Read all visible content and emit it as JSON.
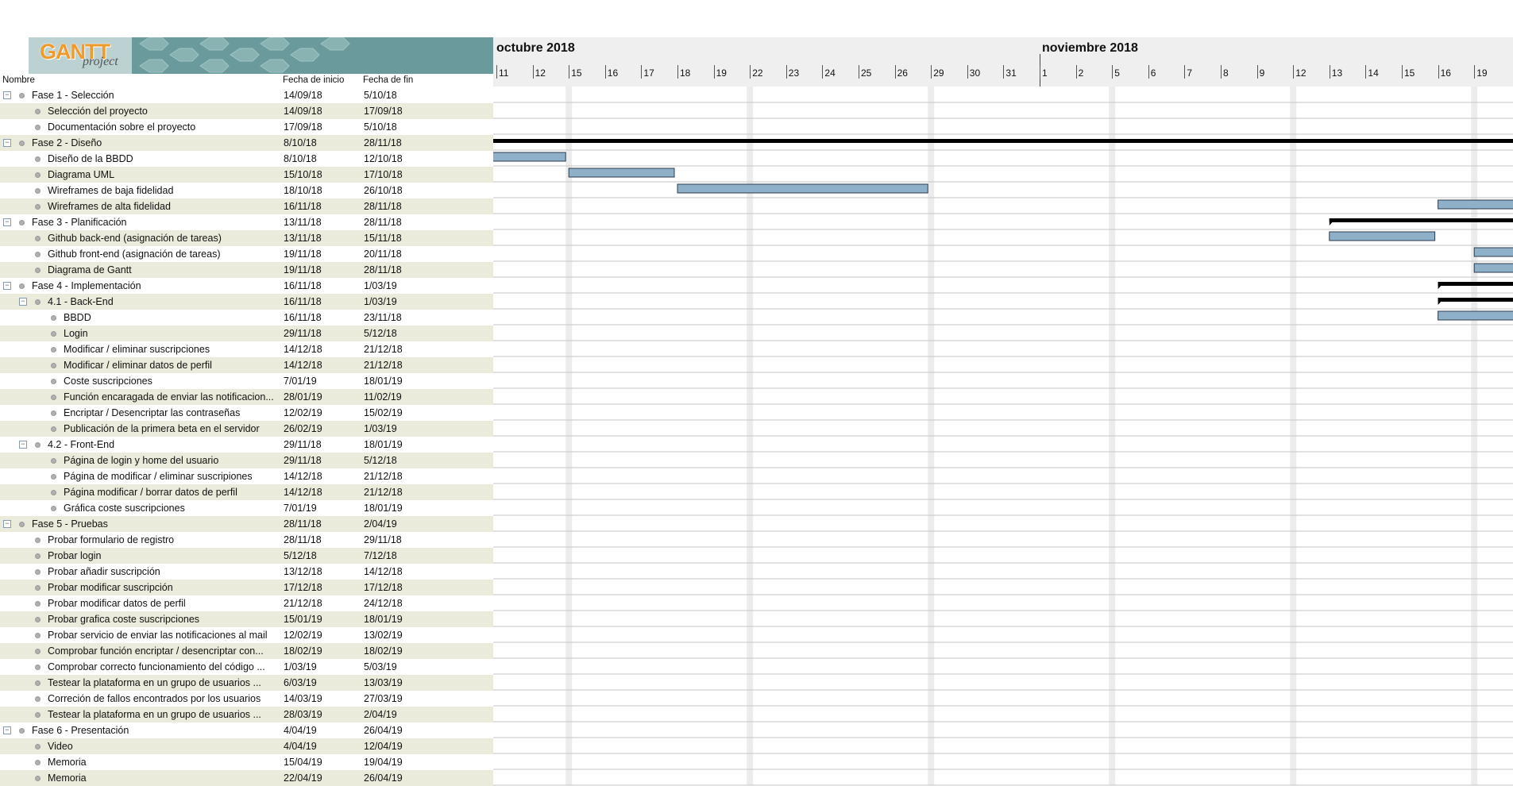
{
  "logo": {
    "gantt": "GANTT",
    "project": "project"
  },
  "table": {
    "header": {
      "name": "Nombre",
      "start": "Fecha de inicio",
      "end": "Fecha de fin"
    },
    "rows": [
      {
        "name": "Fase 1 - Selección",
        "start": "14/09/18",
        "end": "5/10/18",
        "level": 0,
        "expander": true
      },
      {
        "name": "Selección del proyecto",
        "start": "14/09/18",
        "end": "17/09/18",
        "level": 1
      },
      {
        "name": "Documentación sobre el proyecto",
        "start": "17/09/18",
        "end": "5/10/18",
        "level": 1
      },
      {
        "name": "Fase 2 - Diseño",
        "start": "8/10/18",
        "end": "28/11/18",
        "level": 0,
        "expander": true
      },
      {
        "name": "Diseño de la BBDD",
        "start": "8/10/18",
        "end": "12/10/18",
        "level": 1
      },
      {
        "name": "Diagrama UML",
        "start": "15/10/18",
        "end": "17/10/18",
        "level": 1
      },
      {
        "name": "Wireframes de baja fidelidad",
        "start": "18/10/18",
        "end": "26/10/18",
        "level": 1
      },
      {
        "name": "Wireframes de alta fidelidad",
        "start": "16/11/18",
        "end": "28/11/18",
        "level": 1
      },
      {
        "name": "Fase 3 - Planificación",
        "start": "13/11/18",
        "end": "28/11/18",
        "level": 0,
        "expander": true
      },
      {
        "name": "Github back-end (asignación de tareas)",
        "start": "13/11/18",
        "end": "15/11/18",
        "level": 1
      },
      {
        "name": "Github front-end (asignación de tareas)",
        "start": "19/11/18",
        "end": "20/11/18",
        "level": 1
      },
      {
        "name": "Diagrama de Gantt",
        "start": "19/11/18",
        "end": "28/11/18",
        "level": 1
      },
      {
        "name": "Fase 4 - Implementación",
        "start": "16/11/18",
        "end": "1/03/19",
        "level": 0,
        "expander": true
      },
      {
        "name": "4.1 - Back-End",
        "start": "16/11/18",
        "end": "1/03/19",
        "level": 1,
        "expander": true
      },
      {
        "name": "BBDD",
        "start": "16/11/18",
        "end": "23/11/18",
        "level": 2
      },
      {
        "name": "Login",
        "start": "29/11/18",
        "end": "5/12/18",
        "level": 2
      },
      {
        "name": "Modificar / eliminar suscripciones",
        "start": "14/12/18",
        "end": "21/12/18",
        "level": 2
      },
      {
        "name": "Modificar / eliminar datos de perfil",
        "start": "14/12/18",
        "end": "21/12/18",
        "level": 2
      },
      {
        "name": "Coste suscripciones",
        "start": "7/01/19",
        "end": "18/01/19",
        "level": 2
      },
      {
        "name": "Función encaragada de enviar las notificacion...",
        "start": "28/01/19",
        "end": "11/02/19",
        "level": 2
      },
      {
        "name": "Encriptar / Desencriptar las contraseñas",
        "start": "12/02/19",
        "end": "15/02/19",
        "level": 2
      },
      {
        "name": "Publicación de la primera beta en el servidor",
        "start": "26/02/19",
        "end": "1/03/19",
        "level": 2
      },
      {
        "name": "4.2 - Front-End",
        "start": "29/11/18",
        "end": "18/01/19",
        "level": 1,
        "expander": true
      },
      {
        "name": "Página de login y home del usuario",
        "start": "29/11/18",
        "end": "5/12/18",
        "level": 2
      },
      {
        "name": "Página de modificar / eliminar suscripiones",
        "start": "14/12/18",
        "end": "21/12/18",
        "level": 2
      },
      {
        "name": "Página modificar / borrar datos de perfil",
        "start": "14/12/18",
        "end": "21/12/18",
        "level": 2
      },
      {
        "name": "Gráfica coste suscripciones",
        "start": "7/01/19",
        "end": "18/01/19",
        "level": 2
      },
      {
        "name": "Fase 5 - Pruebas",
        "start": "28/11/18",
        "end": "2/04/19",
        "level": 0,
        "expander": true
      },
      {
        "name": "Probar formulario de registro",
        "start": "28/11/18",
        "end": "29/11/18",
        "level": 1
      },
      {
        "name": "Probar login",
        "start": "5/12/18",
        "end": "7/12/18",
        "level": 1
      },
      {
        "name": "Probar añadir suscripción",
        "start": "13/12/18",
        "end": "14/12/18",
        "level": 1
      },
      {
        "name": "Probar modificar suscripción",
        "start": "17/12/18",
        "end": "17/12/18",
        "level": 1
      },
      {
        "name": "Probar modificar datos de perfil",
        "start": "21/12/18",
        "end": "24/12/18",
        "level": 1
      },
      {
        "name": "Probar grafica coste suscripciones",
        "start": "15/01/19",
        "end": "18/01/19",
        "level": 1
      },
      {
        "name": "Probar servicio de enviar las notificaciones al mail",
        "start": "12/02/19",
        "end": "13/02/19",
        "level": 1
      },
      {
        "name": "Comprobar función encriptar / desencriptar con...",
        "start": "18/02/19",
        "end": "18/02/19",
        "level": 1
      },
      {
        "name": "Comprobar correcto funcionamiento del código ...",
        "start": "1/03/19",
        "end": "5/03/19",
        "level": 1
      },
      {
        "name": "Testear la plataforma en un grupo de usuarios ...",
        "start": "6/03/19",
        "end": "13/03/19",
        "level": 1
      },
      {
        "name": "Correción de fallos encontrados por los usuarios",
        "start": "14/03/19",
        "end": "27/03/19",
        "level": 1
      },
      {
        "name": "Testear la plataforma en un grupo de usuarios ...",
        "start": "28/03/19",
        "end": "2/04/19",
        "level": 1
      },
      {
        "name": "Fase 6 - Presentación",
        "start": "4/04/19",
        "end": "26/04/19",
        "level": 0,
        "expander": true
      },
      {
        "name": "Video",
        "start": "4/04/19",
        "end": "12/04/19",
        "level": 1
      },
      {
        "name": "Memoria",
        "start": "15/04/19",
        "end": "19/04/19",
        "level": 1
      },
      {
        "name": "Memoria",
        "start": "22/04/19",
        "end": "26/04/19",
        "level": 1
      }
    ]
  },
  "timeline": {
    "months": [
      "octubre 2018",
      "noviembre 2018"
    ],
    "days": [
      "11",
      "12",
      "15",
      "16",
      "17",
      "18",
      "19",
      "22",
      "23",
      "24",
      "25",
      "26",
      "29",
      "30",
      "31",
      "1",
      "2",
      "5",
      "6",
      "7",
      "8",
      "9",
      "12",
      "13",
      "14",
      "15",
      "16",
      "19"
    ]
  },
  "colors": {
    "task_bar": "#8fb0c9",
    "task_bar_border": "#2b3c4c",
    "summary_bar": "#000000",
    "grid_line": "#c6c6c6",
    "weekend_band": "#ececec",
    "row_alt": "#ebebdc"
  }
}
